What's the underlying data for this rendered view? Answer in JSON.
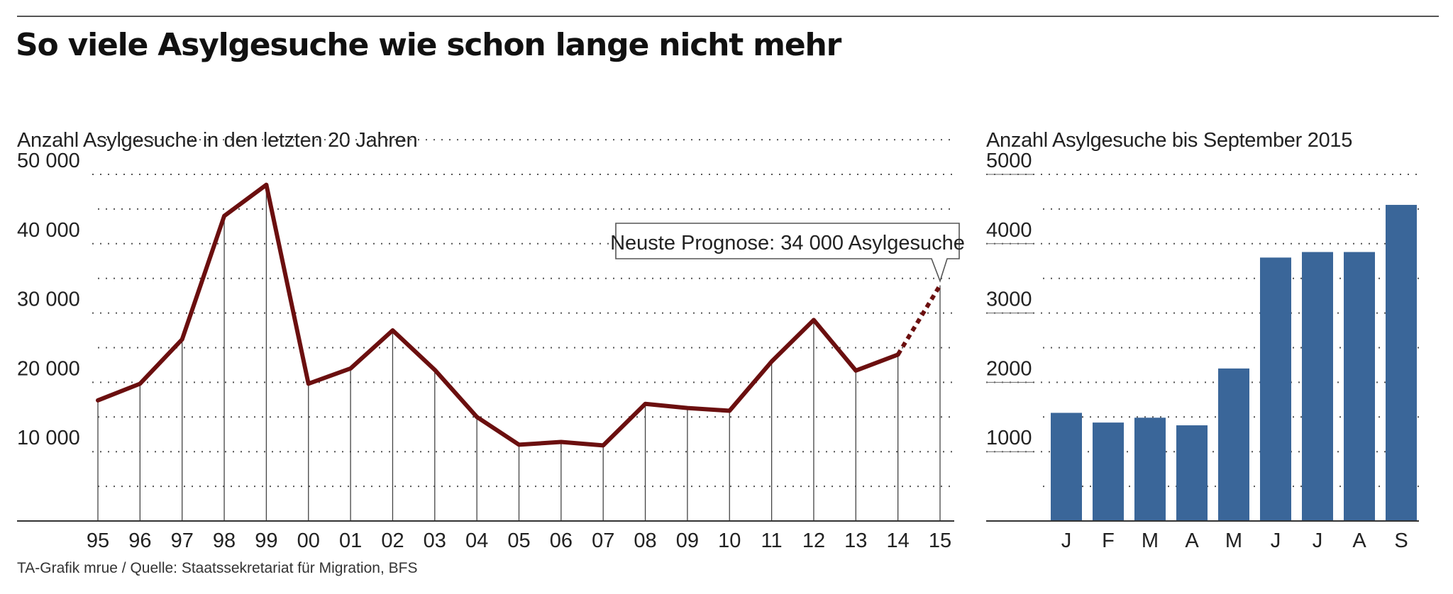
{
  "title": "So viele Asylgesuche wie schon lange nicht mehr",
  "footer": "TA-Grafik mrue / Quelle: Staatssekretariat für Migration, BFS",
  "colors": {
    "line": "#6b0f0f",
    "bar": "#3a6699",
    "axis": "#333333",
    "grid": "#555555"
  },
  "chart_data": [
    {
      "type": "line",
      "title": "Anzahl Asylgesuche in den letzten 20 Jahren",
      "x": [
        "95",
        "96",
        "97",
        "98",
        "99",
        "00",
        "01",
        "02",
        "03",
        "04",
        "05",
        "06",
        "07",
        "08",
        "09",
        "10",
        "11",
        "12",
        "13",
        "14",
        "15"
      ],
      "y": [
        17400,
        19800,
        26200,
        44000,
        48500,
        19800,
        22000,
        27500,
        21800,
        15000,
        11000,
        11400,
        10900,
        16900,
        16300,
        15900,
        23000,
        29000,
        21700,
        24000,
        34000
      ],
      "forecast_from_index": 19,
      "ylim": [
        0,
        50000
      ],
      "yticks": [
        10000,
        20000,
        30000,
        40000,
        50000
      ],
      "ytick_labels": [
        "10 000",
        "20 000",
        "30 000",
        "40 000",
        "50 000"
      ],
      "annotation": "Neuste Prognose: 34 000 Asylgesuche",
      "grid": true
    },
    {
      "type": "bar",
      "title": "Anzahl Asylgesuche bis September 2015",
      "categories": [
        "J",
        "F",
        "M",
        "A",
        "M",
        "J",
        "J",
        "A",
        "S"
      ],
      "values": [
        1560,
        1420,
        1490,
        1380,
        2200,
        3800,
        3880,
        3880,
        4560
      ],
      "ylim": [
        0,
        5000
      ],
      "yticks": [
        1000,
        2000,
        3000,
        4000,
        5000
      ],
      "ytick_labels": [
        "1000",
        "2000",
        "3000",
        "4000",
        "5000"
      ],
      "grid": true
    }
  ]
}
